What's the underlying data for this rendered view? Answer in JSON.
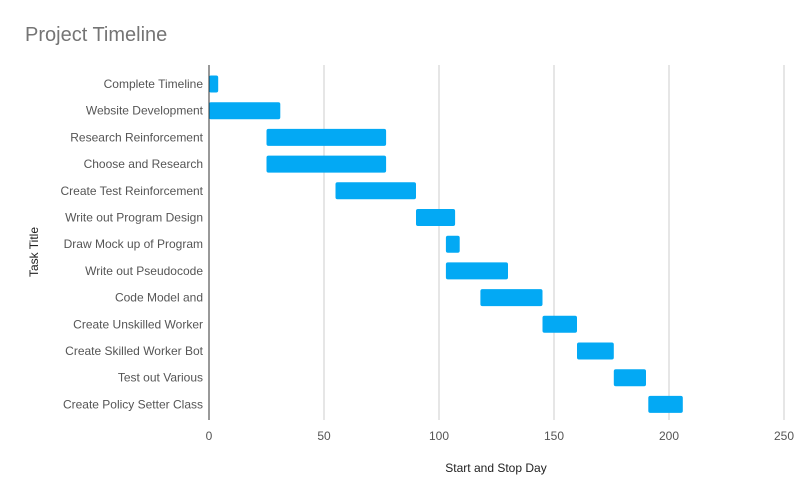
{
  "chart_data": {
    "type": "bar",
    "subtype": "gantt",
    "title": "Project Timeline",
    "xlabel": "Start and Stop Day",
    "ylabel": "Task Title",
    "xlim": [
      0,
      250
    ],
    "xticks": [
      "0",
      "50",
      "100",
      "150",
      "200",
      "250"
    ],
    "grid": true,
    "legend": "none",
    "bar_color": "#03a9f4",
    "categories": [
      "Complete Timeline",
      "Website Development",
      "Research Reinforcement",
      "Choose and Research",
      "Create Test Reinforcement",
      "Write out Program Design",
      "Draw Mock up of Program",
      "Write out Pseudocode",
      "Code Model and",
      "Create Unskilled Worker",
      "Create Skilled Worker Bot",
      "Test out Various",
      "Create Policy Setter Class"
    ],
    "tasks": [
      {
        "start": 0,
        "end": 4
      },
      {
        "start": 0,
        "end": 31
      },
      {
        "start": 25,
        "end": 77
      },
      {
        "start": 25,
        "end": 77
      },
      {
        "start": 55,
        "end": 90
      },
      {
        "start": 90,
        "end": 107
      },
      {
        "start": 103,
        "end": 109
      },
      {
        "start": 103,
        "end": 130
      },
      {
        "start": 118,
        "end": 145
      },
      {
        "start": 145,
        "end": 160
      },
      {
        "start": 160,
        "end": 176
      },
      {
        "start": 176,
        "end": 190
      },
      {
        "start": 191,
        "end": 206
      }
    ]
  }
}
